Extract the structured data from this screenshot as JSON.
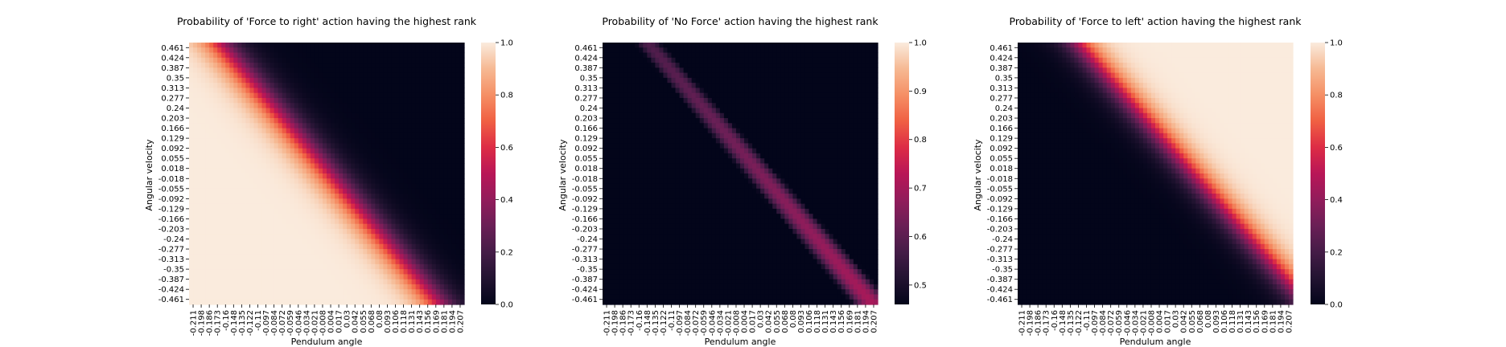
{
  "chart_data": [
    {
      "type": "heatmap",
      "title": "Probability of 'Force to right' action having the highest rank",
      "xlabel": "Pendulum angle",
      "ylabel": "Angular velocity",
      "x_ticks": [
        "-0.211",
        "-0.198",
        "-0.186",
        "-0.173",
        "-0.16",
        "-0.148",
        "-0.135",
        "-0.122",
        "-0.11",
        "-0.097",
        "-0.084",
        "-0.072",
        "-0.059",
        "-0.046",
        "-0.034",
        "-0.021",
        "-0.008",
        "0.004",
        "0.017",
        "0.03",
        "0.042",
        "0.055",
        "0.068",
        "0.08",
        "0.093",
        "0.106",
        "0.118",
        "0.131",
        "0.143",
        "0.156",
        "0.169",
        "0.181",
        "0.194",
        "0.207"
      ],
      "y_ticks": [
        "0.461",
        "0.424",
        "0.387",
        "0.35",
        "0.313",
        "0.277",
        "0.24",
        "0.203",
        "0.166",
        "0.129",
        "0.092",
        "0.055",
        "0.018",
        "-0.018",
        "-0.055",
        "-0.092",
        "-0.129",
        "-0.166",
        "-0.203",
        "-0.24",
        "-0.277",
        "-0.313",
        "-0.35",
        "-0.387",
        "-0.424",
        "-0.461"
      ],
      "colorbar": {
        "min": 0.0,
        "max": 1.0,
        "ticks": [
          "0.0",
          "0.2",
          "0.4",
          "0.6",
          "0.8",
          "1.0"
        ]
      },
      "field": {
        "kind": "sigmoid-band",
        "model": "right",
        "decision_angle_at_v_min": 0.17,
        "decision_angle_at_v_max": -0.165,
        "transition_width": 0.018
      }
    },
    {
      "type": "heatmap",
      "title": "Probability of 'No Force' action having the highest rank",
      "xlabel": "Pendulum angle",
      "ylabel": "Angular velocity",
      "x_ticks": [
        "-0.211",
        "-0.198",
        "-0.186",
        "-0.173",
        "-0.16",
        "-0.148",
        "-0.135",
        "-0.122",
        "-0.11",
        "-0.097",
        "-0.084",
        "-0.072",
        "-0.059",
        "-0.046",
        "-0.034",
        "-0.021",
        "-0.008",
        "0.004",
        "0.017",
        "0.03",
        "0.042",
        "0.055",
        "0.068",
        "0.08",
        "0.093",
        "0.106",
        "0.118",
        "0.131",
        "0.143",
        "0.156",
        "0.169",
        "0.181",
        "0.194",
        "0.207"
      ],
      "y_ticks": [
        "0.461",
        "0.424",
        "0.387",
        "0.35",
        "0.313",
        "0.277",
        "0.24",
        "0.203",
        "0.166",
        "0.129",
        "0.092",
        "0.055",
        "0.018",
        "-0.018",
        "-0.055",
        "-0.092",
        "-0.129",
        "-0.166",
        "-0.203",
        "-0.24",
        "-0.277",
        "-0.313",
        "-0.35",
        "-0.387",
        "-0.424",
        "-0.461"
      ],
      "colorbar": {
        "min": 0.46,
        "max": 1.0,
        "ticks": [
          "0.5",
          "0.6",
          "0.7",
          "0.8",
          "0.9",
          "1.0"
        ]
      },
      "field": {
        "kind": "double-band",
        "model": "none"
      }
    },
    {
      "type": "heatmap",
      "title": "Probability of 'Force to left' action having the highest rank",
      "xlabel": "Pendulum angle",
      "ylabel": "Angular velocity",
      "x_ticks": [
        "-0.211",
        "-0.198",
        "-0.186",
        "-0.173",
        "-0.16",
        "-0.148",
        "-0.135",
        "-0.122",
        "-0.11",
        "-0.097",
        "-0.084",
        "-0.072",
        "-0.059",
        "-0.046",
        "-0.034",
        "-0.021",
        "-0.008",
        "0.004",
        "0.017",
        "0.03",
        "0.042",
        "0.055",
        "0.068",
        "0.08",
        "0.093",
        "0.106",
        "0.118",
        "0.131",
        "0.143",
        "0.156",
        "0.169",
        "0.181",
        "0.194",
        "0.207"
      ],
      "y_ticks": [
        "0.461",
        "0.424",
        "0.387",
        "0.35",
        "0.313",
        "0.277",
        "0.24",
        "0.203",
        "0.166",
        "0.129",
        "0.092",
        "0.055",
        "0.018",
        "-0.018",
        "-0.055",
        "-0.092",
        "-0.129",
        "-0.166",
        "-0.203",
        "-0.24",
        "-0.277",
        "-0.313",
        "-0.35",
        "-0.387",
        "-0.424",
        "-0.461"
      ],
      "colorbar": {
        "min": 0.0,
        "max": 1.0,
        "ticks": [
          "0.0",
          "0.2",
          "0.4",
          "0.6",
          "0.8",
          "1.0"
        ]
      },
      "field": {
        "kind": "sigmoid-band",
        "model": "left",
        "decision_angle_at_v_min": 0.23,
        "decision_angle_at_v_max": -0.12,
        "transition_width": 0.016
      }
    }
  ]
}
